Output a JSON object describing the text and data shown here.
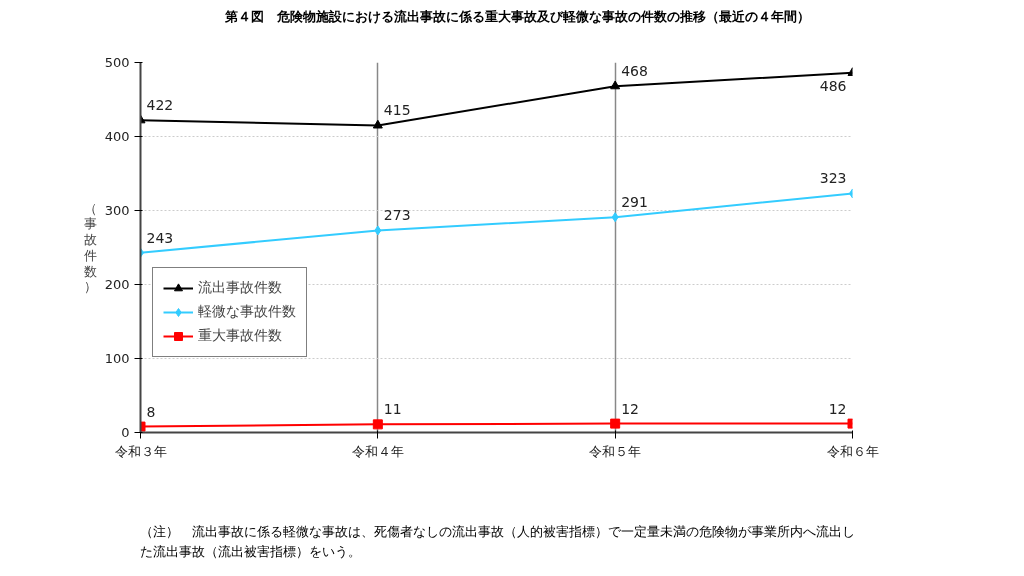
{
  "chart_data": {
    "type": "line",
    "title": "第４図　危険物施設における流出事故に係る重大事故及び軽微な事故の件数の推移（最近の４年間）",
    "ylabel": "（事故件数）",
    "categories": [
      "令和３年",
      "令和４年",
      "令和５年",
      "令和６年"
    ],
    "series": [
      {
        "name": "流出事故件数",
        "color": "#000000",
        "marker": "triangle",
        "values": [
          422,
          415,
          468,
          486
        ]
      },
      {
        "name": "軽微な事故件数",
        "color": "#33ccff",
        "marker": "diamond",
        "values": [
          243,
          273,
          291,
          323
        ]
      },
      {
        "name": "重大事故件数",
        "color": "#ff0000",
        "marker": "square",
        "values": [
          8,
          11,
          12,
          12
        ]
      }
    ],
    "ylim": [
      0,
      500
    ],
    "yticks": [
      0,
      100,
      200,
      300,
      400,
      500
    ],
    "grid": true,
    "legend": "left",
    "data_labels": true,
    "annotations": [
      "（注）　流出事故に係る軽微な事故は、死傷者なしの流出事故（人的被害指標）で一定量未満の危険物が事業所内へ流出した流出事故（流出被害指標）をいう。"
    ]
  }
}
